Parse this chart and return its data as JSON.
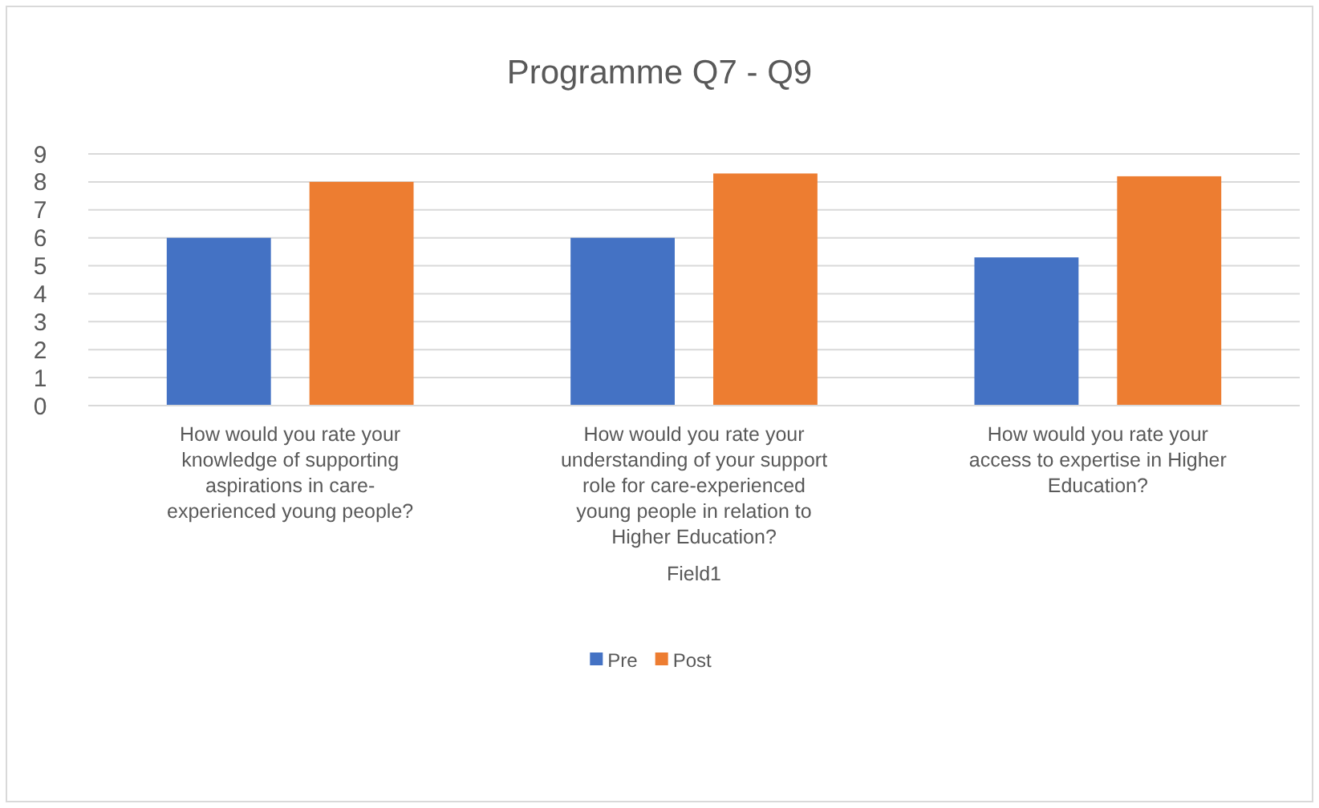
{
  "chart_data": {
    "type": "bar",
    "title": "Programme Q7 - Q9",
    "xlabel": "Field1",
    "categories": [
      "How would you rate your knowledge of supporting aspirations in care-experienced young people?",
      "How would you rate your understanding of your support role for care-experienced young people in relation to Higher Education?",
      "How would you rate your access to expertise in Higher Education?"
    ],
    "series": [
      {
        "name": "Pre",
        "color": "#4472c4",
        "values": [
          6,
          6,
          5.3
        ]
      },
      {
        "name": "Post",
        "color": "#ed7d31",
        "values": [
          8,
          8.3,
          8.2
        ]
      }
    ],
    "ylim": [
      0,
      9
    ],
    "yticks": [
      0,
      1,
      2,
      3,
      4,
      5,
      6,
      7,
      8,
      9
    ],
    "grid": "y",
    "legend": "bottom"
  }
}
